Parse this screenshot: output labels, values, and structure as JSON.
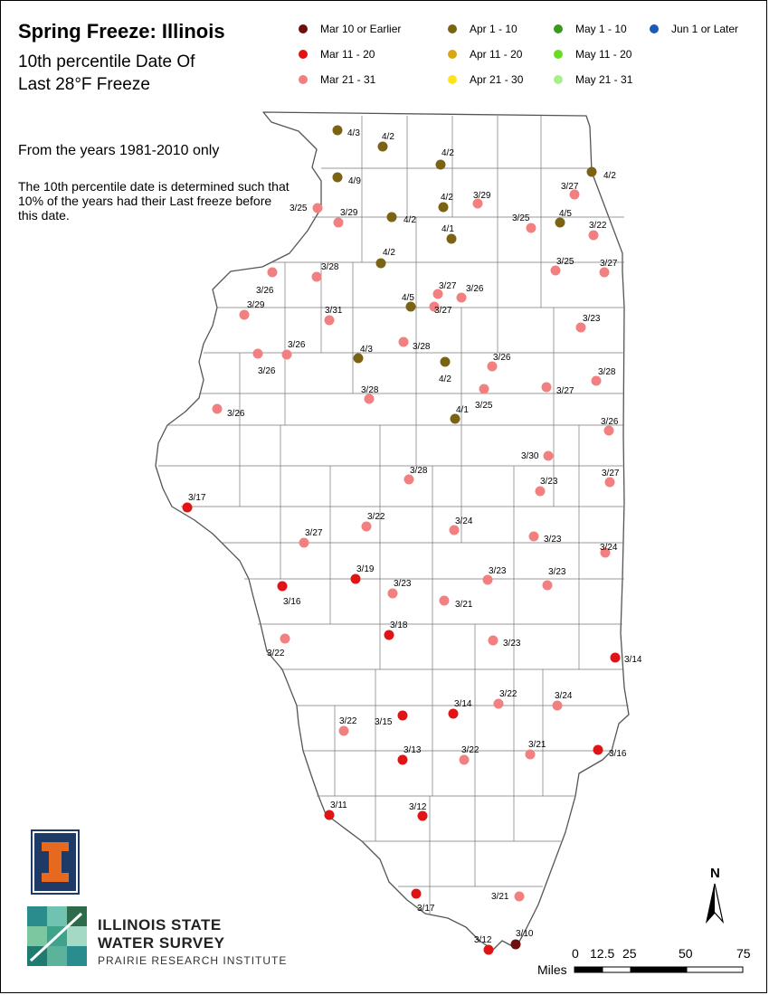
{
  "title": "Spring Freeze: Illinois",
  "subtitle_line1": "10th percentile Date Of",
  "subtitle_line2": "Last 28°F Freeze",
  "years_note": "From the years 1981-2010 only",
  "explanation": "The 10th percentile date is determined such that 10% of the years had their Last freeze before this date.",
  "legend": [
    {
      "label": "Mar 10 or Earlier",
      "color": "#6b0f0f"
    },
    {
      "label": "Mar 11 - 20",
      "color": "#e01414"
    },
    {
      "label": "Mar 21 - 31",
      "color": "#f28080"
    },
    {
      "label": "Apr 1 - 10",
      "color": "#7a6414"
    },
    {
      "label": "Apr 11 - 20",
      "color": "#d8a812"
    },
    {
      "label": "Apr 21 - 30",
      "color": "#ffe21a"
    },
    {
      "label": "May 1 - 10",
      "color": "#3a9a1e"
    },
    {
      "label": "May 11 - 20",
      "color": "#66dd22"
    },
    {
      "label": "May 21 - 31",
      "color": "#a8f08a"
    },
    {
      "label": "Jun 1 or Later",
      "color": "#1a5ab8"
    }
  ],
  "stations": [
    {
      "date": "4/3",
      "cat": 3
    },
    {
      "date": "4/2",
      "cat": 3
    },
    {
      "date": "4/2",
      "cat": 3
    },
    {
      "date": "4/2",
      "cat": 3
    },
    {
      "date": "4/9",
      "cat": 3
    },
    {
      "date": "3/27",
      "cat": 2
    },
    {
      "date": "4/2",
      "cat": 3
    },
    {
      "date": "3/29",
      "cat": 2
    },
    {
      "date": "3/25",
      "cat": 2
    },
    {
      "date": "3/29",
      "cat": 2
    },
    {
      "date": "4/2",
      "cat": 3
    },
    {
      "date": "4/1",
      "cat": 3
    },
    {
      "date": "3/25",
      "cat": 2
    },
    {
      "date": "4/5",
      "cat": 3
    },
    {
      "date": "3/22",
      "cat": 2
    },
    {
      "date": "4/2",
      "cat": 3
    },
    {
      "date": "3/28",
      "cat": 2
    },
    {
      "date": "3/26",
      "cat": 2
    },
    {
      "date": "3/25",
      "cat": 2
    },
    {
      "date": "3/27",
      "cat": 2
    },
    {
      "date": "3/27",
      "cat": 2
    },
    {
      "date": "3/26",
      "cat": 2
    },
    {
      "date": "4/5",
      "cat": 3
    },
    {
      "date": "3/27",
      "cat": 2
    },
    {
      "date": "3/29",
      "cat": 2
    },
    {
      "date": "3/31",
      "cat": 2
    },
    {
      "date": "3/23",
      "cat": 2
    },
    {
      "date": "3/26",
      "cat": 2
    },
    {
      "date": "4/3",
      "cat": 3
    },
    {
      "date": "3/28",
      "cat": 2
    },
    {
      "date": "3/26",
      "cat": 2
    },
    {
      "date": "3/26",
      "cat": 2
    },
    {
      "date": "4/2",
      "cat": 3
    },
    {
      "date": "3/28",
      "cat": 2
    },
    {
      "date": "3/25",
      "cat": 2
    },
    {
      "date": "3/27",
      "cat": 2
    },
    {
      "date": "3/28",
      "cat": 2
    },
    {
      "date": "3/26",
      "cat": 2
    },
    {
      "date": "4/1",
      "cat": 3
    },
    {
      "date": "3/26",
      "cat": 2
    },
    {
      "date": "3/30",
      "cat": 2
    },
    {
      "date": "3/28",
      "cat": 2
    },
    {
      "date": "3/23",
      "cat": 2
    },
    {
      "date": "3/27",
      "cat": 2
    },
    {
      "date": "3/17",
      "cat": 1
    },
    {
      "date": "3/22",
      "cat": 2
    },
    {
      "date": "3/24",
      "cat": 2
    },
    {
      "date": "3/27",
      "cat": 2
    },
    {
      "date": "3/23",
      "cat": 2
    },
    {
      "date": "3/24",
      "cat": 2
    },
    {
      "date": "3/19",
      "cat": 1
    },
    {
      "date": "3/23",
      "cat": 2
    },
    {
      "date": "3/23",
      "cat": 2
    },
    {
      "date": "3/16",
      "cat": 1
    },
    {
      "date": "3/23",
      "cat": 2
    },
    {
      "date": "3/21",
      "cat": 2
    },
    {
      "date": "3/18",
      "cat": 1
    },
    {
      "date": "3/22",
      "cat": 2
    },
    {
      "date": "3/23",
      "cat": 2
    },
    {
      "date": "3/14",
      "cat": 1
    },
    {
      "date": "3/22",
      "cat": 2
    },
    {
      "date": "3/24",
      "cat": 2
    },
    {
      "date": "3/14",
      "cat": 1
    },
    {
      "date": "3/15",
      "cat": 1
    },
    {
      "date": "3/22",
      "cat": 2
    },
    {
      "date": "3/21",
      "cat": 2
    },
    {
      "date": "3/13",
      "cat": 1
    },
    {
      "date": "3/22",
      "cat": 2
    },
    {
      "date": "3/16",
      "cat": 1
    },
    {
      "date": "3/11",
      "cat": 1
    },
    {
      "date": "3/12",
      "cat": 1
    },
    {
      "date": "3/17",
      "cat": 1
    },
    {
      "date": "3/21",
      "cat": 2
    },
    {
      "date": "3/12",
      "cat": 1
    },
    {
      "date": "3/10",
      "cat": 0
    }
  ],
  "north_label": "N",
  "scale": {
    "ticks": [
      "0",
      "12.5",
      "25",
      "50",
      "75"
    ],
    "unit": "Miles"
  },
  "org": {
    "line1": "ILLINOIS STATE",
    "line2": "WATER SURVEY",
    "line3": "PRAIRIE RESEARCH INSTITUTE"
  }
}
